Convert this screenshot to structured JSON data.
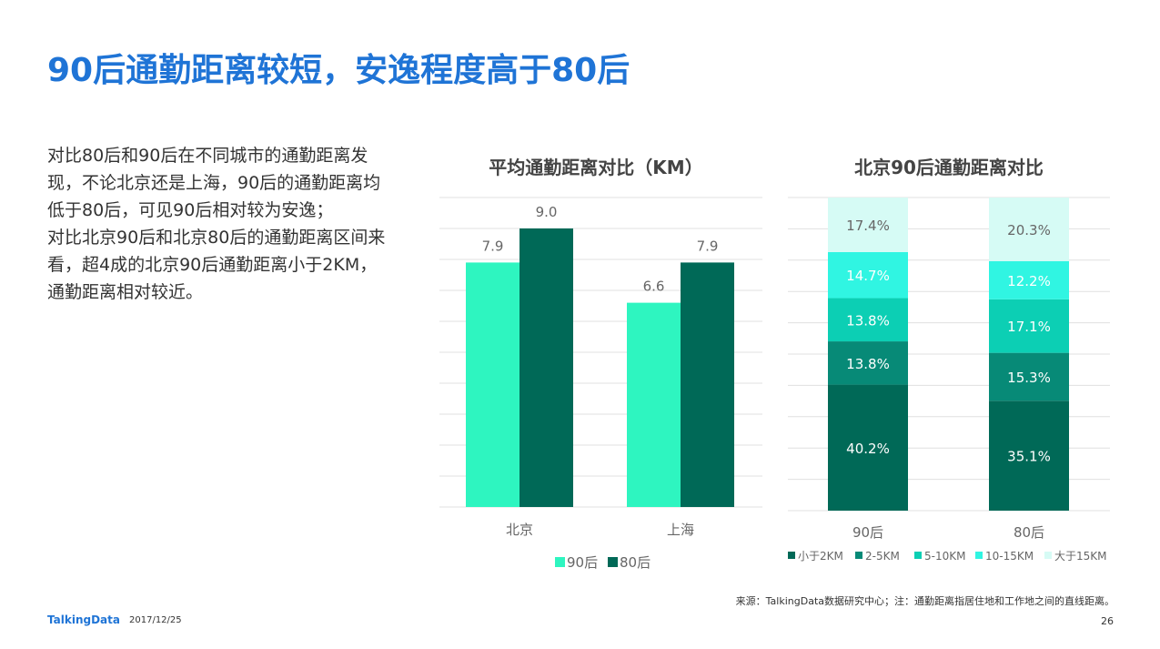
{
  "title": "90后通勤距离较短，安逸程度高于80后",
  "description": {
    "line1": "对比80后和90后在不同城市的通勤距离发",
    "line2": "现，不论北京还是上海，90后的通勤距离均",
    "line3": "低于80后，可见90后相对较为安逸；",
    "line4": "对比北京90后和北京80后的通勤距离区间来",
    "line5": "看，超4成的北京90后通勤距离小于2KM，",
    "line6": "通勤距离相对较近。"
  },
  "chart_data": [
    {
      "type": "bar",
      "title": "平均通勤距离对比（KM）",
      "categories": [
        "北京",
        "上海"
      ],
      "series": [
        {
          "name": "90后",
          "values": [
            7.9,
            6.6
          ],
          "color": "#2ef5c0"
        },
        {
          "name": "80后",
          "values": [
            9.0,
            7.9
          ],
          "color": "#006957"
        }
      ],
      "ylim": [
        0,
        10
      ],
      "grid": true,
      "legend": "bottom"
    },
    {
      "type": "bar",
      "stacked": true,
      "title": "北京90后通勤距离对比",
      "categories": [
        "90后",
        "80后"
      ],
      "series": [
        {
          "name": "小于2KM",
          "values": [
            40.2,
            35.1
          ],
          "labels": [
            "40.2%",
            "35.1%"
          ],
          "color": "#006957"
        },
        {
          "name": "2-5KM",
          "values": [
            13.8,
            15.3
          ],
          "labels": [
            "13.8%",
            "15.3%"
          ],
          "color": "#078a77"
        },
        {
          "name": "5-10KM",
          "values": [
            13.8,
            17.1
          ],
          "labels": [
            "13.8%",
            "17.1%"
          ],
          "color": "#0ccfb4"
        },
        {
          "name": "10-15KM",
          "values": [
            14.7,
            12.2
          ],
          "labels": [
            "14.7%",
            "12.2%"
          ],
          "color": "#30f5e2"
        },
        {
          "name": "大于15KM",
          "values": [
            17.4,
            20.3
          ],
          "labels": [
            "17.4%",
            "20.3%"
          ],
          "color": "#d6fbf5"
        }
      ],
      "ylim": [
        0,
        100
      ],
      "grid": true,
      "legend": "bottom"
    }
  ],
  "footer": {
    "source": "来源：TalkingData数据研究中心；注：通勤距离指居住地和工作地之间的直线距离。",
    "brand": "TalkingData",
    "date": "2017/12/25",
    "page": "26"
  }
}
